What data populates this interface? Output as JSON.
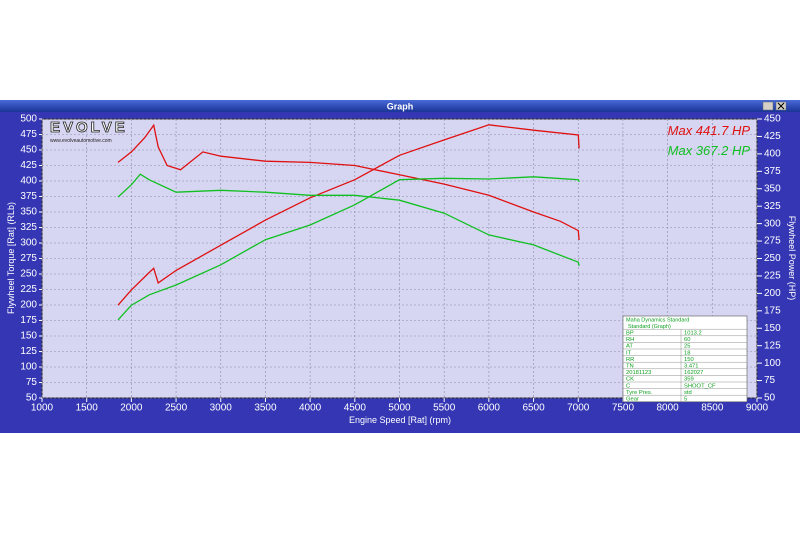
{
  "chart_data": {
    "type": "line",
    "title": "Graph",
    "x_label": "Engine Speed [Rat] (rpm)",
    "y_label": "Flywheel Torque [Rat] (RLb)",
    "y2_label": "Flywheel Power (HP)",
    "xlim": [
      1000,
      9000
    ],
    "xticks": [
      1000,
      1500,
      2000,
      2500,
      3000,
      3500,
      4000,
      4500,
      5000,
      5500,
      6000,
      6500,
      7000,
      7500,
      8000,
      8500,
      9000
    ],
    "ylim": [
      50,
      500
    ],
    "yticks": [
      50,
      75,
      100,
      125,
      150,
      175,
      200,
      225,
      250,
      275,
      300,
      325,
      350,
      375,
      400,
      425,
      450,
      475,
      500
    ],
    "y2lim": [
      50,
      450
    ],
    "y2ticks": [
      50,
      75,
      100,
      125,
      150,
      175,
      200,
      225,
      250,
      275,
      300,
      325,
      350,
      375,
      400,
      425,
      450
    ],
    "grid": true,
    "series": [
      {
        "color": "#e01010",
        "axis": "y",
        "x": [
          1850,
          2000,
          2150,
          2250,
          2300,
          2400,
          2550,
          2800,
          3000,
          3500,
          4000,
          4500,
          5000,
          5500,
          6000,
          6500,
          6800,
          7000,
          7010
        ],
        "values": [
          430,
          447,
          470,
          490,
          455,
          425,
          418,
          447,
          440,
          432,
          430,
          425,
          410,
          395,
          377,
          350,
          335,
          320,
          305
        ]
      },
      {
        "color": "#e01010",
        "axis": "y2",
        "x": [
          1850,
          2000,
          2200,
          2250,
          2300,
          2500,
          3000,
          3500,
          4000,
          4500,
          5000,
          5500,
          6000,
          6500,
          7000,
          7010
        ],
        "values": [
          183,
          205,
          230,
          236,
          215,
          233,
          269,
          305,
          337,
          363,
          398,
          420,
          441.7,
          434,
          427,
          408
        ]
      },
      {
        "color": "#10c020",
        "axis": "y",
        "x": [
          1850,
          2000,
          2100,
          2200,
          2500,
          3000,
          3500,
          4000,
          4500,
          5000,
          5500,
          6000,
          6500,
          7000,
          7010
        ],
        "values": [
          374,
          394,
          411,
          402,
          382,
          385,
          382,
          377,
          377,
          369,
          348,
          313,
          297,
          269,
          263
        ]
      },
      {
        "color": "#10c020",
        "axis": "y2",
        "x": [
          1850,
          2000,
          2200,
          2500,
          3000,
          3500,
          4000,
          4500,
          5000,
          5500,
          6000,
          6500,
          7000,
          7010
        ],
        "values": [
          162,
          183,
          198,
          212,
          241,
          277,
          298,
          327,
          363,
          365,
          364,
          367.2,
          363,
          360
        ]
      }
    ],
    "annotations": [
      {
        "text": "Max 441.7 HP",
        "color": "#e01010"
      },
      {
        "text": "Max 367.2 HP",
        "color": "#10c020"
      }
    ]
  },
  "logo": {
    "name": "EVOLVE",
    "url": "www.evolveautomotive.com"
  },
  "info_table": {
    "header": [
      "Maha Dynamics Standard",
      "Standard (Graph)"
    ],
    "rows": [
      [
        "BP",
        "1013.2"
      ],
      [
        "RH",
        "60"
      ],
      [
        "AT",
        "25"
      ],
      [
        "IT",
        "18"
      ],
      [
        "RR",
        "150"
      ],
      [
        "TN",
        "3.471"
      ],
      [
        "20181123",
        "162027"
      ],
      [
        "CK",
        "359"
      ],
      [
        "C",
        "SHOOT_CF"
      ],
      [
        "Tyre Pres.",
        "std"
      ],
      [
        "Gear",
        "5"
      ]
    ]
  }
}
